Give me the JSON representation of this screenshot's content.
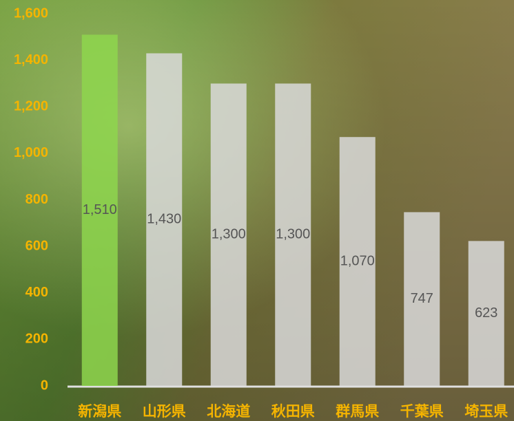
{
  "chart_data": {
    "type": "bar",
    "categories": [
      "新潟県",
      "山形県",
      "北海道",
      "秋田県",
      "群馬県",
      "千葉県",
      "埼玉県"
    ],
    "values": [
      1510,
      1430,
      1300,
      1300,
      1070,
      747,
      623
    ],
    "value_labels": [
      "1,510",
      "1,430",
      "1,300",
      "1,300",
      "1,070",
      "747",
      "623"
    ],
    "colors": [
      "#8ed64e",
      "#d9d9d9",
      "#d9d9d9",
      "#d9d9d9",
      "#d9d9d9",
      "#d9d9d9",
      "#d9d9d9"
    ],
    "ylim": [
      0,
      1600
    ],
    "yticks": [
      0,
      200,
      400,
      600,
      800,
      {
        "value": 1000,
        "label": "1,000"
      },
      {
        "value": 1200,
        "label": "1,200"
      },
      {
        "value": 1400,
        "label": "1,400"
      },
      {
        "value": 1600,
        "label": "1,600"
      }
    ]
  }
}
